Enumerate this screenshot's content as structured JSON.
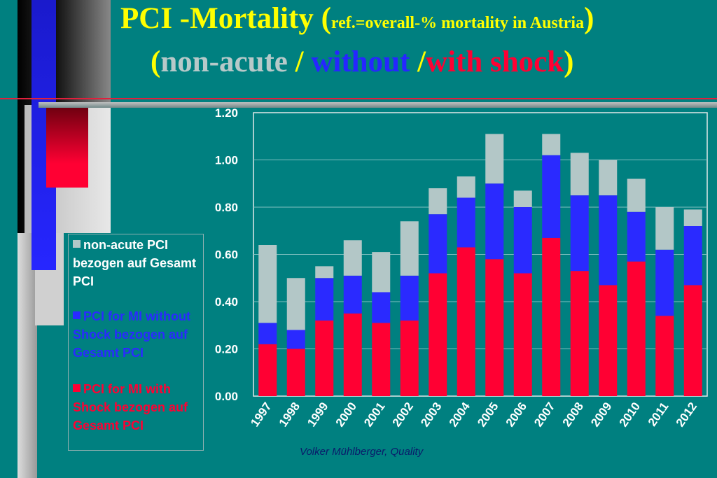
{
  "header": {
    "title_main": "PCI -Mortality (",
    "title_ref": "ref.=overall-% mortality in Austria",
    "title_close": ")",
    "subtitle_open": "(",
    "subtitle_nonacute": "non-acute",
    "subtitle_sep1": " / ",
    "subtitle_without": "without",
    "subtitle_sep2": " /",
    "subtitle_with": "with shock",
    "subtitle_close": ")"
  },
  "footer": {
    "author": "Volker Mühlberger, Quality"
  },
  "colors": {
    "background": "#008080",
    "title": "#ffff00",
    "nonacute": "#b3c7c7",
    "without_shock": "#2a2aff",
    "with_shock": "#ff0033",
    "axis_text": "#ffffff"
  },
  "chart_data": {
    "type": "bar",
    "stacked": true,
    "title": "",
    "xlabel": "",
    "ylabel": "",
    "ylim": [
      0,
      1.2
    ],
    "yticks": [
      "0.00",
      "0.20",
      "0.40",
      "0.60",
      "0.80",
      "1.00",
      "1.20"
    ],
    "grid": true,
    "legend_position": "left",
    "categories": [
      "1997",
      "1998",
      "1999",
      "2000",
      "2001",
      "2002",
      "2003",
      "2004",
      "2005",
      "2006",
      "2007",
      "2008",
      "2009",
      "2010",
      "2011",
      "2012"
    ],
    "series": [
      {
        "name": "PCI for MI with Shock bezogen auf Gesamt PCI",
        "color": "#ff0033",
        "values": [
          0.22,
          0.2,
          0.32,
          0.35,
          0.31,
          0.32,
          0.52,
          0.63,
          0.58,
          0.52,
          0.67,
          0.53,
          0.47,
          0.57,
          0.34,
          0.47
        ]
      },
      {
        "name": "PCI for MI without Shock bezogen auf Gesamt PCI",
        "color": "#2a2aff",
        "values": [
          0.09,
          0.08,
          0.18,
          0.16,
          0.13,
          0.19,
          0.25,
          0.21,
          0.32,
          0.28,
          0.35,
          0.32,
          0.38,
          0.21,
          0.28,
          0.25
        ]
      },
      {
        "name": "non-acute PCI bezogen auf Gesamt PCI",
        "color": "#b3c7c7",
        "values": [
          0.33,
          0.22,
          0.05,
          0.15,
          0.17,
          0.23,
          0.11,
          0.09,
          0.21,
          0.07,
          0.09,
          0.18,
          0.15,
          0.14,
          0.18,
          0.07
        ]
      }
    ]
  },
  "legend": {
    "items": [
      {
        "label": "non-acute PCI bezogen auf Gesamt PCI",
        "color": "#b3c7c7",
        "text_color": "#ffffff"
      },
      {
        "label": "PCI for MI without Shock bezogen auf Gesamt PCI",
        "color": "#2a2aff",
        "text_color": "#2a2aff"
      },
      {
        "label": "PCI for MI with Shock bezogen auf Gesamt PCI",
        "color": "#ff0033",
        "text_color": "#ff0033"
      }
    ]
  }
}
